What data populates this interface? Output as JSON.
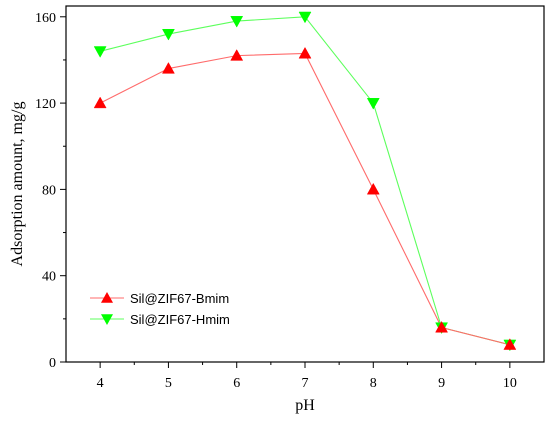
{
  "chart_data": {
    "type": "line",
    "title": "",
    "xlabel": "pH",
    "ylabel": "Adsorption amount, mg/g",
    "x": [
      4,
      5,
      6,
      7,
      8,
      9,
      10
    ],
    "xlim": [
      3.5,
      10.5
    ],
    "ylim": [
      0,
      165
    ],
    "xticks": [
      4,
      5,
      6,
      7,
      8,
      9,
      10
    ],
    "yticks": [
      0,
      40,
      80,
      120,
      160
    ],
    "grid": false,
    "legend_position": "bottom-left",
    "series": [
      {
        "name": "Sil@ZIF67-Bmim",
        "color": "#ff0000",
        "line_color": "#ff6b6b",
        "marker": "triangle-up",
        "values": [
          120,
          136,
          142,
          143,
          80,
          16,
          8
        ]
      },
      {
        "name": "Sil@ZIF67-Hmim",
        "color": "#00ff00",
        "line_color": "#5cff5c",
        "marker": "triangle-down",
        "values": [
          144,
          152,
          158,
          160,
          120,
          16,
          8
        ]
      }
    ]
  }
}
